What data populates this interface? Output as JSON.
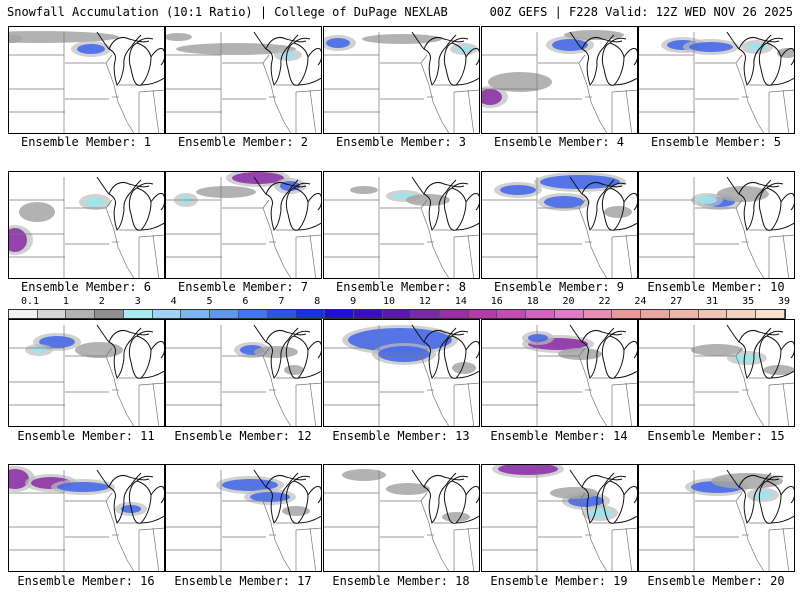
{
  "header": {
    "left": "Snowfall Accumulation (10:1 Ratio) | College of DuPage NEXLAB",
    "right": "00Z GEFS | F228 Valid: 12Z WED NOV 26 2025"
  },
  "colorbar": {
    "labels": [
      "0.1",
      "1",
      "2",
      "3",
      "4",
      "5",
      "6",
      "7",
      "8",
      "9",
      "10",
      "12",
      "14",
      "16",
      "18",
      "20",
      "22",
      "24",
      "27",
      "31",
      "35",
      "39"
    ],
    "colors": [
      "#f2f2f2",
      "#d6d6d6",
      "#b3b3b3",
      "#8f8f8f",
      "#a6ecf0",
      "#9fd4f5",
      "#7ab6f2",
      "#5e98ee",
      "#3f78ea",
      "#2a55e6",
      "#1733e0",
      "#1c0fd6",
      "#3b10b8",
      "#5a1aa6",
      "#7a2aa8",
      "#992ea6",
      "#b23aaa",
      "#c54cb6",
      "#d462c2",
      "#e07ccb",
      "#e88fb6",
      "#e99a9a",
      "#eaa7a0",
      "#edb6a9",
      "#f0c4b4",
      "#f3d2c0",
      "#f7e0cf"
    ]
  },
  "members": [
    {
      "label": "Ensemble Member: 1"
    },
    {
      "label": "Ensemble Member: 2"
    },
    {
      "label": "Ensemble Member: 3"
    },
    {
      "label": "Ensemble Member: 4"
    },
    {
      "label": "Ensemble Member: 5"
    },
    {
      "label": "Ensemble Member: 6"
    },
    {
      "label": "Ensemble Member: 7"
    },
    {
      "label": "Ensemble Member: 8"
    },
    {
      "label": "Ensemble Member: 9"
    },
    {
      "label": "Ensemble Member: 10"
    },
    {
      "label": "Ensemble Member: 11"
    },
    {
      "label": "Ensemble Member: 12"
    },
    {
      "label": "Ensemble Member: 13"
    },
    {
      "label": "Ensemble Member: 14"
    },
    {
      "label": "Ensemble Member: 15"
    },
    {
      "label": "Ensemble Member: 16"
    },
    {
      "label": "Ensemble Member: 17"
    },
    {
      "label": "Ensemble Member: 18"
    },
    {
      "label": "Ensemble Member: 19"
    },
    {
      "label": "Ensemble Member: 20"
    }
  ]
}
